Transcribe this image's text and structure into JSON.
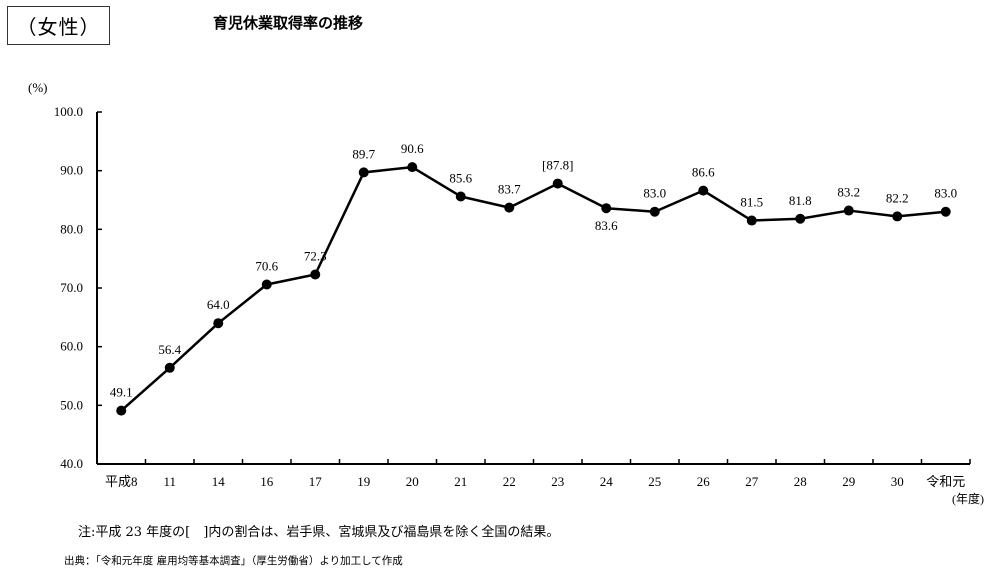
{
  "header": {
    "group_label": "（女性）",
    "title": "育児休業取得率の推移"
  },
  "chart_data": {
    "type": "line",
    "title": "育児休業取得率の推移",
    "ylabel": "(%)",
    "xlabel": "(年度)",
    "ylim": [
      40,
      100
    ],
    "yticks": [
      "40.0",
      "50.0",
      "60.0",
      "70.0",
      "80.0",
      "90.0",
      "100.0"
    ],
    "grid": false,
    "categories": [
      "平成8",
      "11",
      "14",
      "16",
      "17",
      "19",
      "20",
      "21",
      "22",
      "23",
      "24",
      "25",
      "26",
      "27",
      "28",
      "29",
      "30",
      "令和元"
    ],
    "values": [
      49.1,
      56.4,
      64.0,
      70.6,
      72.3,
      89.7,
      90.6,
      85.6,
      83.7,
      87.8,
      83.6,
      83.0,
      86.6,
      81.5,
      81.8,
      83.2,
      82.2,
      83.0
    ],
    "data_labels": [
      "49.1",
      "56.4",
      "64.0",
      "70.6",
      "72.3",
      "89.7",
      "90.6",
      "85.6",
      "83.7",
      "[87.8]",
      "83.6",
      "83.0",
      "86.6",
      "81.5",
      "81.8",
      "83.2",
      "82.2",
      "83.0"
    ],
    "line_color": "#000000"
  },
  "footer": {
    "note": "注:平成 23 年度の[　]内の割合は、岩手県、宮城県及び福島県を除く全国の結果。",
    "source": "出典：「令和元年度 雇用均等基本調査」（厚生労働省）より加工して作成"
  }
}
